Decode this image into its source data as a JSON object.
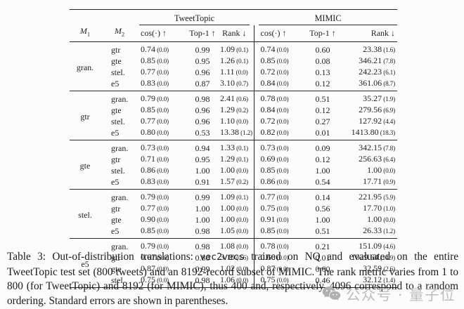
{
  "table": {
    "groups": [
      {
        "label": "TweetTopic"
      },
      {
        "label": "MIMIC"
      }
    ],
    "row_headers": {
      "m1": {
        "base": "M",
        "sub": "1"
      },
      "m2": {
        "base": "M",
        "sub": "2"
      }
    },
    "metric_headers": [
      "cos(·) ↑",
      "Top-1 ↑",
      "Rank ↓",
      "cos(·) ↑",
      "Top-1 ↑",
      "Rank ↓"
    ],
    "blocks": [
      {
        "m1": "gran.",
        "rows": [
          {
            "m2": "gtr",
            "cells": [
              [
                "0.74",
                "(0.0)"
              ],
              [
                "0.99",
                ""
              ],
              [
                "1.09",
                "(0.1)"
              ],
              [
                "0.74",
                "(0.0)"
              ],
              [
                "0.60",
                ""
              ],
              [
                "23.38",
                "(1.6)"
              ]
            ]
          },
          {
            "m2": "gte",
            "cells": [
              [
                "0.85",
                "(0.0)"
              ],
              [
                "0.95",
                ""
              ],
              [
                "1.26",
                "(0.1)"
              ],
              [
                "0.85",
                "(0.0)"
              ],
              [
                "0.08",
                ""
              ],
              [
                "346.21",
                "(7.8)"
              ]
            ]
          },
          {
            "m2": "stel.",
            "cells": [
              [
                "0.77",
                "(0.0)"
              ],
              [
                "0.96",
                ""
              ],
              [
                "1.11",
                "(0.0)"
              ],
              [
                "0.72",
                "(0.0)"
              ],
              [
                "0.13",
                ""
              ],
              [
                "242.23",
                "(6.1)"
              ]
            ]
          },
          {
            "m2": "e5",
            "cells": [
              [
                "0.83",
                "(0.0)"
              ],
              [
                "0.87",
                ""
              ],
              [
                "3.10",
                "(0.7)"
              ],
              [
                "0.84",
                "(0.0)"
              ],
              [
                "0.12",
                ""
              ],
              [
                "361.06",
                "(8.7)"
              ]
            ]
          }
        ]
      },
      {
        "m1": "gtr",
        "rows": [
          {
            "m2": "gran.",
            "cells": [
              [
                "0.79",
                "(0.0)"
              ],
              [
                "0.98",
                ""
              ],
              [
                "2.41",
                "(0.6)"
              ],
              [
                "0.78",
                "(0.0)"
              ],
              [
                "0.51",
                ""
              ],
              [
                "35.27",
                "(1.9)"
              ]
            ]
          },
          {
            "m2": "gte",
            "cells": [
              [
                "0.85",
                "(0.0)"
              ],
              [
                "0.96",
                ""
              ],
              [
                "1.29",
                "(0.2)"
              ],
              [
                "0.84",
                "(0.0)"
              ],
              [
                "0.12",
                ""
              ],
              [
                "279.56",
                "(6.9)"
              ]
            ]
          },
          {
            "m2": "stel.",
            "cells": [
              [
                "0.77",
                "(0.0)"
              ],
              [
                "0.96",
                ""
              ],
              [
                "1.10",
                "(0.0)"
              ],
              [
                "0.72",
                "(0.0)"
              ],
              [
                "0.27",
                ""
              ],
              [
                "127.92",
                "(4.4)"
              ]
            ]
          },
          {
            "m2": "e5",
            "cells": [
              [
                "0.80",
                "(0.0)"
              ],
              [
                "0.53",
                ""
              ],
              [
                "13.38",
                "(1.2)"
              ],
              [
                "0.82",
                "(0.0)"
              ],
              [
                "0.01",
                ""
              ],
              [
                "1413.80",
                "(18.3)"
              ]
            ]
          }
        ]
      },
      {
        "m1": "gte",
        "rows": [
          {
            "m2": "gran.",
            "cells": [
              [
                "0.73",
                "(0.0)"
              ],
              [
                "0.94",
                ""
              ],
              [
                "1.33",
                "(0.1)"
              ],
              [
                "0.73",
                "(0.0)"
              ],
              [
                "0.09",
                ""
              ],
              [
                "342.15",
                "(7.8)"
              ]
            ]
          },
          {
            "m2": "gtr",
            "cells": [
              [
                "0.71",
                "(0.0)"
              ],
              [
                "0.95",
                ""
              ],
              [
                "1.29",
                "(0.1)"
              ],
              [
                "0.69",
                "(0.0)"
              ],
              [
                "0.12",
                ""
              ],
              [
                "256.63",
                "(6.4)"
              ]
            ]
          },
          {
            "m2": "stel.",
            "cells": [
              [
                "0.86",
                "(0.0)"
              ],
              [
                "1.00",
                ""
              ],
              [
                "1.00",
                "(0.0)"
              ],
              [
                "0.85",
                "(0.0)"
              ],
              [
                "1.00",
                ""
              ],
              [
                "1.00",
                "(0.0)"
              ]
            ]
          },
          {
            "m2": "e5",
            "cells": [
              [
                "0.83",
                "(0.0)"
              ],
              [
                "0.91",
                ""
              ],
              [
                "1.57",
                "(0.2)"
              ],
              [
                "0.86",
                "(0.0)"
              ],
              [
                "0.54",
                ""
              ],
              [
                "17.71",
                "(0.9)"
              ]
            ]
          }
        ]
      },
      {
        "m1": "stel.",
        "rows": [
          {
            "m2": "gran.",
            "cells": [
              [
                "0.79",
                "(0.0)"
              ],
              [
                "0.99",
                ""
              ],
              [
                "1.09",
                "(0.1)"
              ],
              [
                "0.77",
                "(0.0)"
              ],
              [
                "0.14",
                ""
              ],
              [
                "221.95",
                "(5.9)"
              ]
            ]
          },
          {
            "m2": "gtr",
            "cells": [
              [
                "0.77",
                "(0.0)"
              ],
              [
                "1.00",
                ""
              ],
              [
                "1.00",
                "(0.0)"
              ],
              [
                "0.75",
                "(0.0)"
              ],
              [
                "0.56",
                ""
              ],
              [
                "17.70",
                "(1.0)"
              ]
            ]
          },
          {
            "m2": "gte",
            "cells": [
              [
                "0.90",
                "(0.0)"
              ],
              [
                "1.00",
                ""
              ],
              [
                "1.00",
                "(0.0)"
              ],
              [
                "0.91",
                "(0.0)"
              ],
              [
                "1.00",
                ""
              ],
              [
                "1.00",
                "(0.0)"
              ]
            ]
          },
          {
            "m2": "e5",
            "cells": [
              [
                "0.85",
                "(0.0)"
              ],
              [
                "0.98",
                ""
              ],
              [
                "1.05",
                "(0.0)"
              ],
              [
                "0.85",
                "(0.0)"
              ],
              [
                "0.51",
                ""
              ],
              [
                "26.33",
                "(1.2)"
              ]
            ]
          }
        ]
      },
      {
        "m1": "e5",
        "rows": [
          {
            "m2": "gran.",
            "cells": [
              [
                "0.79",
                "(0.0)"
              ],
              [
                "0.98",
                ""
              ],
              [
                "1.08",
                "(0.0)"
              ],
              [
                "0.78",
                "(0.0)"
              ],
              [
                "0.21",
                ""
              ],
              [
                "151.09",
                "(4.6)"
              ]
            ]
          },
          {
            "m2": "gtr",
            "cells": [
              [
                "0.67",
                "(0.0)"
              ],
              [
                "0.80",
                ""
              ],
              [
                "3.10",
                "(0.6)"
              ],
              [
                "0.66",
                "(0.0)"
              ],
              [
                "0.01",
                ""
              ],
              [
                "1029.64",
                "(14.9)"
              ]
            ]
          },
          {
            "m2": "gte",
            "cells": [
              [
                "0.87",
                "(0.0)"
              ],
              [
                "0.99",
                ""
              ],
              [
                "1.02",
                "(0.0)"
              ],
              [
                "0.87",
                "(0.0)"
              ],
              [
                "0.60",
                ""
              ],
              [
                "32.59",
                "(2.6)"
              ]
            ]
          },
          {
            "m2": "stel.",
            "cells": [
              [
                "0.75",
                "(0.0)"
              ],
              [
                "0.98",
                ""
              ],
              [
                "1.06",
                "(0.0)"
              ],
              [
                "0.75",
                "(0.0)"
              ],
              [
                "0.46",
                ""
              ],
              [
                "32.12",
                "(1.4)"
              ]
            ]
          }
        ]
      }
    ]
  },
  "caption": {
    "segments": [
      {
        "text": "Table 3: Out-of-distribution translations: ",
        "style": "normal"
      },
      {
        "text": "vec2vecs",
        "style": "mono"
      },
      {
        "text": " trained on NQ and evaluated on the entire TweetTopic test set (800 tweets) and an 8192-record subset of MIMIC. The rank metric varies from 1 to 800 (for TweetTopic) and 8192 (for MIMIC), thus 400 and, respectively, 4096 correspond to a random ordering. Standard errors are shown in parentheses.",
        "style": "normal"
      }
    ]
  },
  "watermark": {
    "text": "公众号 · 量子位",
    "color": "#bdbdbd"
  }
}
